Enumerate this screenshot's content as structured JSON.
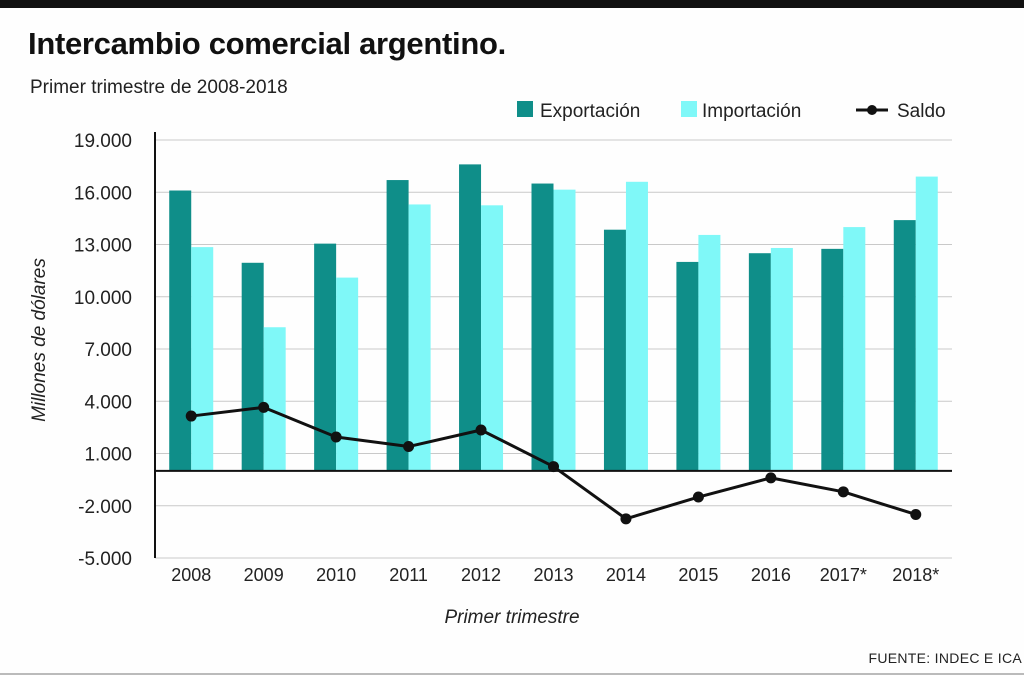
{
  "title": "Intercambio comercial argentino.",
  "subtitle": "Primer trimestre de 2008-2018",
  "source": "FUENTE: INDEC E ICA",
  "colors": {
    "export": "#0f8e89",
    "import": "#7ff8f8",
    "saldo": "#111111",
    "grid": "#c9c9c9"
  },
  "chart_data": {
    "type": "bar",
    "title": "Intercambio comercial argentino.",
    "subtitle": "Primer trimestre de 2008-2018",
    "xlabel": "Primer trimestre",
    "ylabel": "Millones de dólares",
    "ylim": [
      -5000,
      19000
    ],
    "yticks": [
      19000,
      16000,
      13000,
      10000,
      7000,
      4000,
      1000,
      -2000,
      -5000
    ],
    "ytick_labels": [
      "19.000",
      "16.000",
      "13.000",
      "10.000",
      "7.000",
      "4.000",
      "1.000",
      "-2.000",
      "-5.000"
    ],
    "categories": [
      "2008",
      "2009",
      "2010",
      "2011",
      "2012",
      "2013",
      "2014",
      "2015",
      "2016",
      "2017*",
      "2018*"
    ],
    "series": [
      {
        "name": "Exportación",
        "type": "bar",
        "values": [
          16100,
          11950,
          13050,
          16700,
          17600,
          16500,
          13850,
          12000,
          12500,
          12750,
          14400
        ]
      },
      {
        "name": "Importación",
        "type": "bar",
        "values": [
          12850,
          8250,
          11100,
          15300,
          15250,
          16150,
          16600,
          13550,
          12800,
          14000,
          16900
        ]
      },
      {
        "name": "Saldo",
        "type": "line",
        "values": [
          3150,
          3650,
          1950,
          1400,
          2350,
          250,
          -2750,
          -1500,
          -400,
          -1200,
          -2500
        ]
      }
    ],
    "legend": [
      "Exportación",
      "Importación",
      "Saldo"
    ],
    "legend_position": "top-right",
    "grid": true
  }
}
